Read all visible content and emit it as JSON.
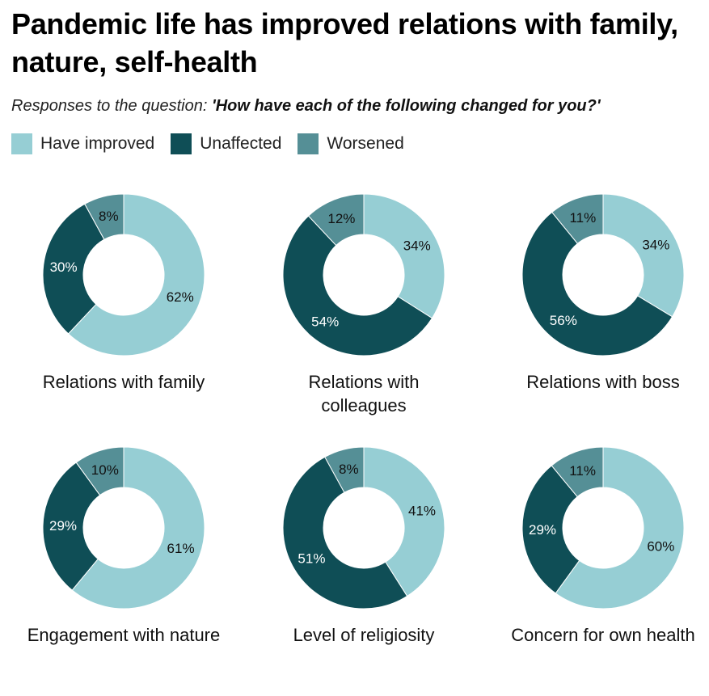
{
  "title": "Pandemic life has improved relations with family, nature, self-health",
  "subtitle_prefix": "Responses to the question: ",
  "subtitle_question": "'How have each of the following changed for you?'",
  "colors": {
    "improved": "#96ced4",
    "unaffected": "#0f4e56",
    "worsened": "#558f96"
  },
  "legend": [
    {
      "label": "Have improved",
      "key": "improved"
    },
    {
      "label": "Unaffected",
      "key": "unaffected"
    },
    {
      "label": "Worsened",
      "key": "worsened"
    }
  ],
  "chart_data": [
    {
      "type": "pie",
      "title": "Relations with family",
      "categories": [
        "Have improved",
        "Unaffected",
        "Worsened"
      ],
      "values": [
        62,
        30,
        8
      ],
      "labels": [
        "62%",
        "30%",
        "8%"
      ]
    },
    {
      "type": "pie",
      "title": "Relations with colleagues",
      "categories": [
        "Have improved",
        "Unaffected",
        "Worsened"
      ],
      "values": [
        34,
        54,
        12
      ],
      "labels": [
        "34%",
        "54%",
        "12%"
      ]
    },
    {
      "type": "pie",
      "title": "Relations with boss",
      "categories": [
        "Have improved",
        "Unaffected",
        "Worsened"
      ],
      "values": [
        34,
        56,
        11
      ],
      "labels": [
        "34%",
        "56%",
        "11%"
      ]
    },
    {
      "type": "pie",
      "title": "Engagement with nature",
      "categories": [
        "Have improved",
        "Unaffected",
        "Worsened"
      ],
      "values": [
        61,
        29,
        10
      ],
      "labels": [
        "61%",
        "29%",
        "10%"
      ]
    },
    {
      "type": "pie",
      "title": "Level of religiosity",
      "categories": [
        "Have improved",
        "Unaffected",
        "Worsened"
      ],
      "values": [
        41,
        51,
        8
      ],
      "labels": [
        "41%",
        "51%",
        "8%"
      ]
    },
    {
      "type": "pie",
      "title": "Concern for own health",
      "categories": [
        "Have improved",
        "Unaffected",
        "Worsened"
      ],
      "values": [
        60,
        29,
        11
      ],
      "labels": [
        "60%",
        "29%",
        "11%"
      ]
    }
  ]
}
